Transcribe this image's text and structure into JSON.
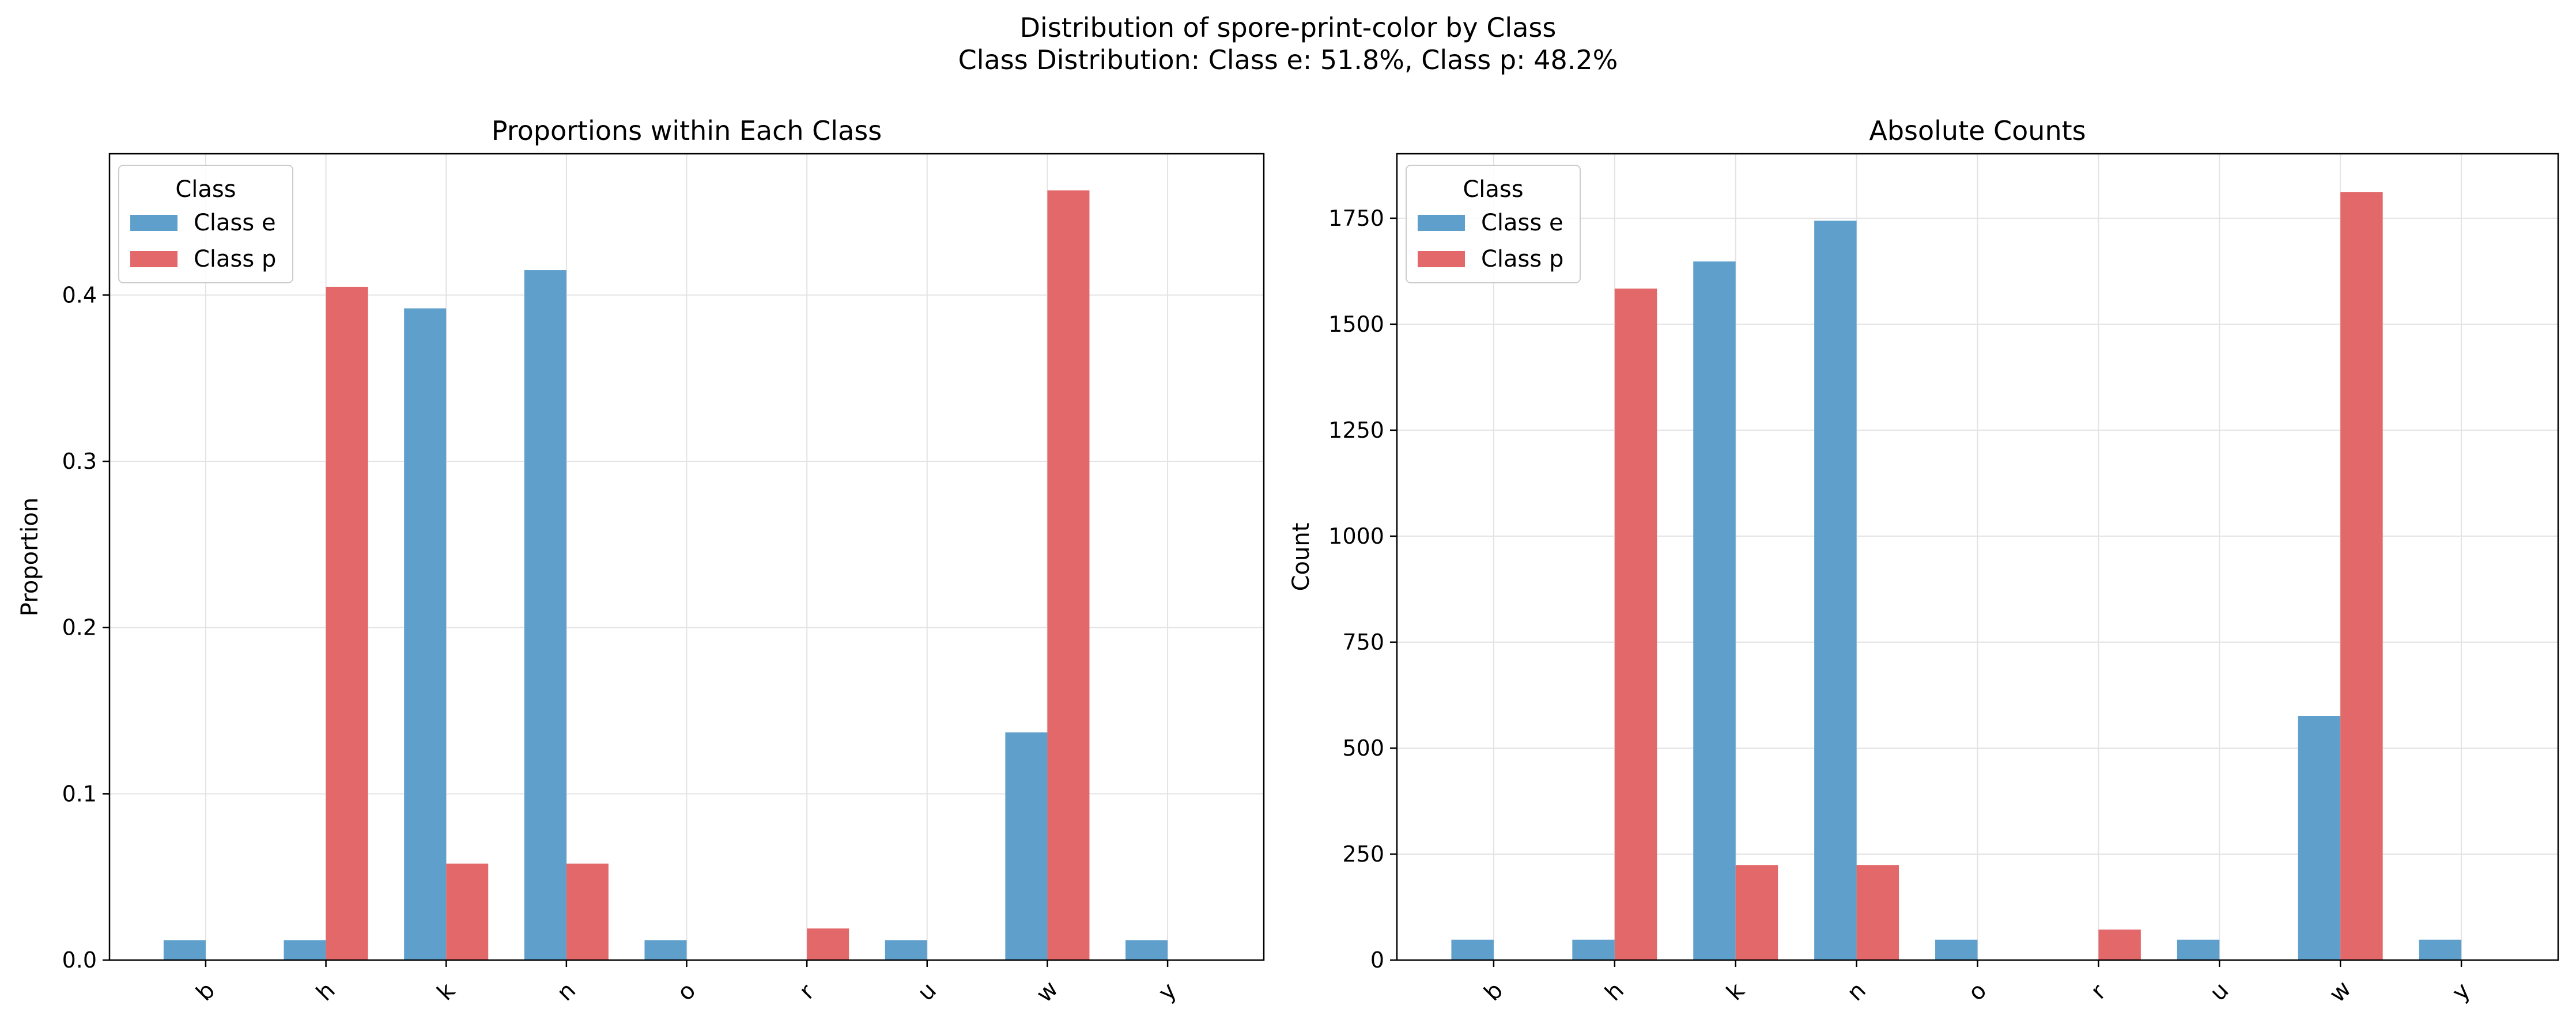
{
  "figure": {
    "title_line1": "Distribution of spore-print-color by Class",
    "title_line2": "Class Distribution: Class e: 51.8%, Class p: 48.2%"
  },
  "colors": {
    "class_e": "#5f9fcb",
    "class_p": "#e3686a"
  },
  "chart_data": [
    {
      "type": "bar",
      "title": "Proportions within Each Class",
      "xlabel": "",
      "ylabel": "Proportion",
      "categories": [
        "b",
        "h",
        "k",
        "n",
        "o",
        "r",
        "u",
        "w",
        "y"
      ],
      "series": [
        {
          "name": "Class e",
          "values": [
            0.012,
            0.012,
            0.392,
            0.415,
            0.012,
            0.0,
            0.012,
            0.137,
            0.012
          ]
        },
        {
          "name": "Class p",
          "values": [
            0.0,
            0.405,
            0.058,
            0.058,
            0.0,
            0.019,
            0.0,
            0.463,
            0.0
          ]
        }
      ],
      "ylim": [
        0,
        0.485
      ],
      "yticks": [
        0.0,
        0.1,
        0.2,
        0.3,
        0.4
      ],
      "ytick_labels": [
        "0.0",
        "0.1",
        "0.2",
        "0.3",
        "0.4"
      ],
      "legend": {
        "title": "Class",
        "entries": [
          "Class e",
          "Class p"
        ],
        "placement": "top-left"
      },
      "grid": true
    },
    {
      "type": "bar",
      "title": "Absolute Counts",
      "xlabel": "",
      "ylabel": "Count",
      "categories": [
        "b",
        "h",
        "k",
        "n",
        "o",
        "r",
        "u",
        "w",
        "y"
      ],
      "series": [
        {
          "name": "Class e",
          "values": [
            48,
            48,
            1648,
            1744,
            48,
            0,
            48,
            576,
            48
          ]
        },
        {
          "name": "Class p",
          "values": [
            0,
            1584,
            224,
            224,
            0,
            72,
            0,
            1812,
            0
          ]
        }
      ],
      "ylim": [
        0,
        1902
      ],
      "yticks": [
        0,
        250,
        500,
        750,
        1000,
        1250,
        1500,
        1750
      ],
      "ytick_labels": [
        "0",
        "250",
        "500",
        "750",
        "1000",
        "1250",
        "1500",
        "1750"
      ],
      "legend": {
        "title": "Class",
        "entries": [
          "Class e",
          "Class p"
        ],
        "placement": "top-left"
      },
      "grid": true
    }
  ]
}
